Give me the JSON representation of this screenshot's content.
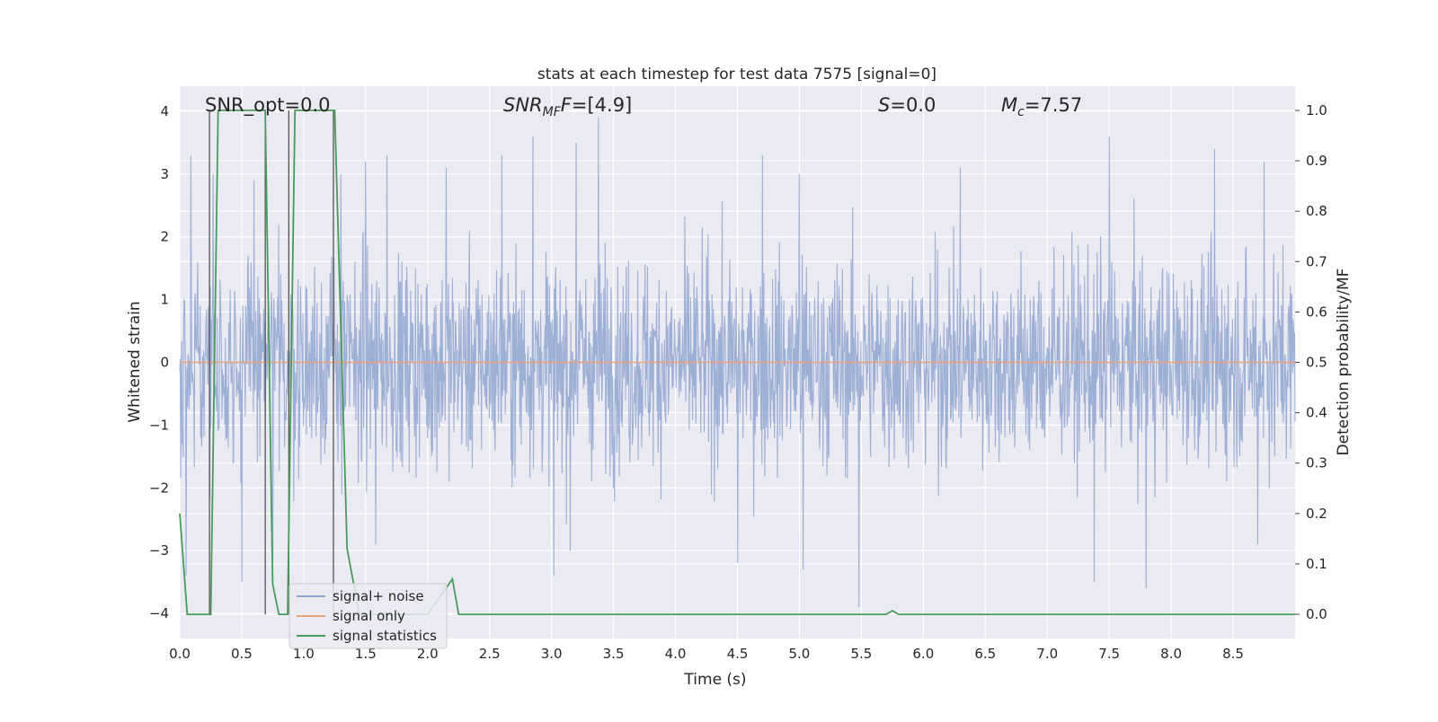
{
  "chart_data": {
    "type": "line",
    "title": "stats at each timestep for test data 7575 [signal=0]",
    "xlabel": "Time (s)",
    "ylabel_left": "Whitened strain",
    "ylabel_right": "Detection probability/MF",
    "xlim": [
      0,
      9.0
    ],
    "ylim_left": [
      -4.4,
      4.4
    ],
    "ylim_right": [
      -0.048,
      1.048
    ],
    "xticks": [
      "0.0",
      "0.5",
      "1.0",
      "1.5",
      "2.0",
      "2.5",
      "3.0",
      "3.5",
      "4.0",
      "4.5",
      "5.0",
      "5.5",
      "6.0",
      "6.5",
      "7.0",
      "7.5",
      "8.0",
      "8.5"
    ],
    "yticks_left": [
      "4",
      "3",
      "2",
      "1",
      "0",
      "−1",
      "−2",
      "−3",
      "−4"
    ],
    "yticks_right": [
      "1.0",
      "0.9",
      "0.8",
      "0.7",
      "0.6",
      "0.5",
      "0.4",
      "0.3",
      "0.2",
      "0.1",
      "0.0"
    ],
    "grid": true,
    "legend_position": "lower-left",
    "annotations": {
      "snr_opt": "SNR_opt=0.0",
      "snr_mf_main": "SNR",
      "snr_mf_sub": "MF",
      "snr_mf_value": "=[4.9]",
      "s_main": "S",
      "s_value": "=0.0",
      "mc_main": "M",
      "mc_sub": "c",
      "mc_value": "=7.57"
    },
    "series": [
      {
        "name": "signal+ noise",
        "color": "#8fa4d0",
        "kind": "noise strain",
        "typical_band": [
          -1.6,
          1.6
        ],
        "peaks": [
          [
            0.09,
            3.3
          ],
          [
            0.27,
            3.0
          ],
          [
            0.6,
            2.9
          ],
          [
            1.3,
            3.0
          ],
          [
            1.5,
            3.2
          ],
          [
            1.67,
            3.3
          ],
          [
            2.15,
            3.1
          ],
          [
            2.6,
            3.3
          ],
          [
            2.85,
            3.6
          ],
          [
            3.2,
            3.5
          ],
          [
            3.38,
            3.9
          ],
          [
            4.7,
            3.3
          ],
          [
            5.0,
            3.0
          ],
          [
            6.3,
            3.1
          ],
          [
            7.5,
            3.6
          ],
          [
            8.35,
            3.4
          ],
          [
            8.75,
            3.2
          ]
        ],
        "troughs": [
          [
            0.05,
            -3.4
          ],
          [
            0.5,
            -3.5
          ],
          [
            0.75,
            -3.2
          ],
          [
            1.58,
            -2.9
          ],
          [
            3.02,
            -3.4
          ],
          [
            3.15,
            -3.0
          ],
          [
            4.5,
            -3.2
          ],
          [
            5.03,
            -3.3
          ],
          [
            5.48,
            -3.9
          ],
          [
            7.38,
            -3.5
          ],
          [
            7.8,
            -3.6
          ],
          [
            8.7,
            -2.9
          ]
        ]
      },
      {
        "name": "signal only",
        "color": "#e8a07d",
        "values": 0
      },
      {
        "name": "signal statistics",
        "color": "#4a9a5c",
        "x": [
          0.0,
          0.06,
          0.12,
          0.25,
          0.31,
          0.4,
          0.69,
          0.75,
          0.8,
          0.87,
          0.93,
          1.0,
          1.25,
          1.35,
          1.45,
          1.6,
          2.0,
          2.2,
          2.25,
          2.3,
          2.5,
          3.0,
          4.0,
          5.0,
          5.5,
          5.7,
          5.75,
          5.8,
          6.0,
          7.0,
          8.0,
          9.0
        ],
        "y": [
          0.2,
          0.0,
          0.0,
          0.0,
          1.0,
          1.0,
          1.0,
          0.06,
          0.0,
          0.0,
          1.0,
          1.0,
          1.0,
          0.13,
          0.0,
          0.0,
          0.0,
          0.07,
          0.0,
          0.0,
          0.0,
          0.0,
          0.0,
          0.0,
          0.0,
          0.0,
          0.007,
          0.0,
          0.0,
          0.0,
          0.0,
          0.0
        ]
      }
    ],
    "vertical_lines": {
      "color": "#555555",
      "x": [
        0.24,
        0.69,
        0.88,
        1.24
      ]
    }
  }
}
